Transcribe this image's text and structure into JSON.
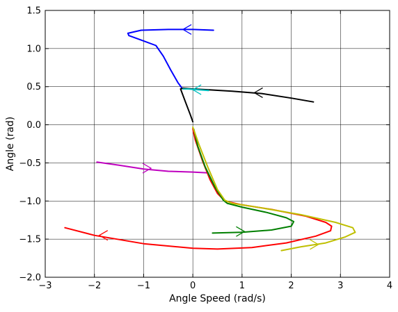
{
  "chart_data": {
    "type": "line",
    "title": "",
    "xlabel": "Angle Speed (rad/s)",
    "ylabel": "Angle (rad)",
    "xlim": [
      -3,
      4
    ],
    "ylim": [
      -2.0,
      1.5
    ],
    "xticks": [
      -3,
      -2,
      -1,
      0,
      1,
      2,
      3,
      4
    ],
    "yticks": [
      -2.0,
      -1.5,
      -1.0,
      -0.5,
      0.0,
      0.5,
      1.0,
      1.5
    ],
    "xtick_labels": [
      "−3",
      "−2",
      "−1",
      "0",
      "1",
      "2",
      "3",
      "4"
    ],
    "ytick_labels": [
      "−2.0",
      "−1.5",
      "−1.0",
      "−0.5",
      "0.0",
      "0.5",
      "1.0",
      "1.5"
    ],
    "grid": true,
    "series": [
      {
        "color": "#0000ff",
        "x": [
          0.42,
          0.0,
          -0.5,
          -1.05,
          -1.32,
          -1.3,
          -1.0,
          -0.75,
          -0.6,
          -0.45,
          -0.3,
          -0.22
        ],
        "y": [
          1.24,
          1.25,
          1.25,
          1.24,
          1.2,
          1.17,
          1.1,
          1.04,
          0.9,
          0.72,
          0.55,
          0.48
        ],
        "arrow": {
          "x": -0.2,
          "y": 1.25,
          "dir": "left"
        }
      },
      {
        "color": "#000000",
        "x": [
          2.45,
          2.0,
          1.4,
          0.8,
          0.3,
          0.0,
          -0.2,
          -0.25,
          -0.15,
          -0.05,
          0.0
        ],
        "y": [
          0.3,
          0.35,
          0.41,
          0.44,
          0.46,
          0.47,
          0.48,
          0.47,
          0.3,
          0.13,
          0.04
        ],
        "arrow": {
          "x": 1.25,
          "y": 0.42,
          "dir": "left"
        }
      },
      {
        "color": "#00bfbf",
        "x": [
          0.32,
          0.1,
          -0.1,
          -0.2
        ],
        "y": [
          0.45,
          0.46,
          0.47,
          0.47
        ],
        "arrow": {
          "x": 0.0,
          "y": 0.46,
          "dir": "left"
        }
      },
      {
        "color": "#bf00bf",
        "x": [
          -1.95,
          -1.5,
          -1.0,
          -0.5,
          0.0,
          0.3
        ],
        "y": [
          -0.49,
          -0.53,
          -0.58,
          -0.61,
          -0.62,
          -0.63
        ],
        "arrow": {
          "x": -0.85,
          "y": -0.57,
          "dir": "right"
        }
      },
      {
        "color": "#ff0000",
        "x": [
          -2.6,
          -2.0,
          -1.0,
          0.0,
          0.5,
          1.2,
          1.9,
          2.5,
          2.8,
          2.82,
          2.7,
          2.3,
          1.6,
          1.0,
          0.65,
          0.5,
          0.35,
          0.2,
          0.05,
          0.0
        ],
        "y": [
          -1.35,
          -1.45,
          -1.56,
          -1.62,
          -1.63,
          -1.61,
          -1.55,
          -1.46,
          -1.39,
          -1.33,
          -1.28,
          -1.2,
          -1.11,
          -1.05,
          -1.0,
          -0.9,
          -0.72,
          -0.48,
          -0.2,
          -0.05
        ],
        "arrow": {
          "x": -1.9,
          "y": -1.45,
          "dir": "left"
        }
      },
      {
        "color": "#007f00",
        "x": [
          0.4,
          1.0,
          1.6,
          2.0,
          2.05,
          1.9,
          1.5,
          1.0,
          0.7,
          0.62,
          0.45,
          0.25,
          0.1,
          0.02
        ],
        "y": [
          -1.42,
          -1.41,
          -1.38,
          -1.33,
          -1.27,
          -1.22,
          -1.15,
          -1.08,
          -1.03,
          -0.99,
          -0.82,
          -0.55,
          -0.28,
          -0.06
        ],
        "arrow": {
          "x": 1.05,
          "y": -1.4,
          "dir": "right"
        }
      },
      {
        "color": "#bfbf00",
        "x": [
          1.8,
          2.2,
          2.7,
          3.1,
          3.3,
          3.25,
          2.9,
          2.2,
          1.4,
          0.8,
          0.65,
          0.5,
          0.3,
          0.12,
          0.0
        ],
        "y": [
          -1.65,
          -1.6,
          -1.55,
          -1.47,
          -1.41,
          -1.35,
          -1.28,
          -1.18,
          -1.09,
          -1.03,
          -0.99,
          -0.85,
          -0.55,
          -0.25,
          -0.03
        ],
        "arrow": {
          "x": 2.55,
          "y": -1.57,
          "dir": "right"
        }
      }
    ]
  }
}
